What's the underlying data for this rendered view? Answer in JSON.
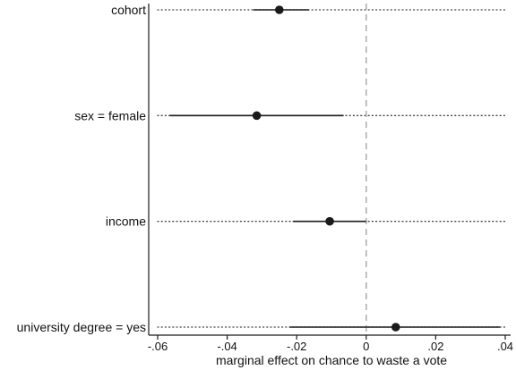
{
  "chart_data": {
    "type": "scatter",
    "subtype": "coefficient-plot",
    "title": "",
    "xlabel": "marginal effect on chance to waste a vote",
    "ylabel": "",
    "xlim": [
      -0.06,
      0.04
    ],
    "x_ticks": [
      -0.06,
      -0.04,
      -0.02,
      0,
      0.02,
      0.04
    ],
    "x_tick_labels": [
      "-.06",
      "-.04",
      "-.02",
      "0",
      ".02",
      ".04"
    ],
    "reference_line": 0,
    "grid": "dotted horizontal guide per row",
    "legend": "none",
    "categories": [
      "cohort",
      "sex = female",
      "income",
      "university degree = yes"
    ],
    "estimates": [
      -0.025,
      -0.0315,
      -0.0105,
      0.0085
    ],
    "ci_low": [
      -0.0325,
      -0.0565,
      -0.021,
      -0.022
    ],
    "ci_high": [
      -0.0165,
      -0.0065,
      0.0,
      0.0385
    ],
    "colors": {
      "point": "#1a1a1a",
      "ci_line": "#1a1a1a",
      "guide_line": "#444444",
      "reference_line": "#a6a6a6",
      "axis": "#1a1a1a"
    }
  }
}
